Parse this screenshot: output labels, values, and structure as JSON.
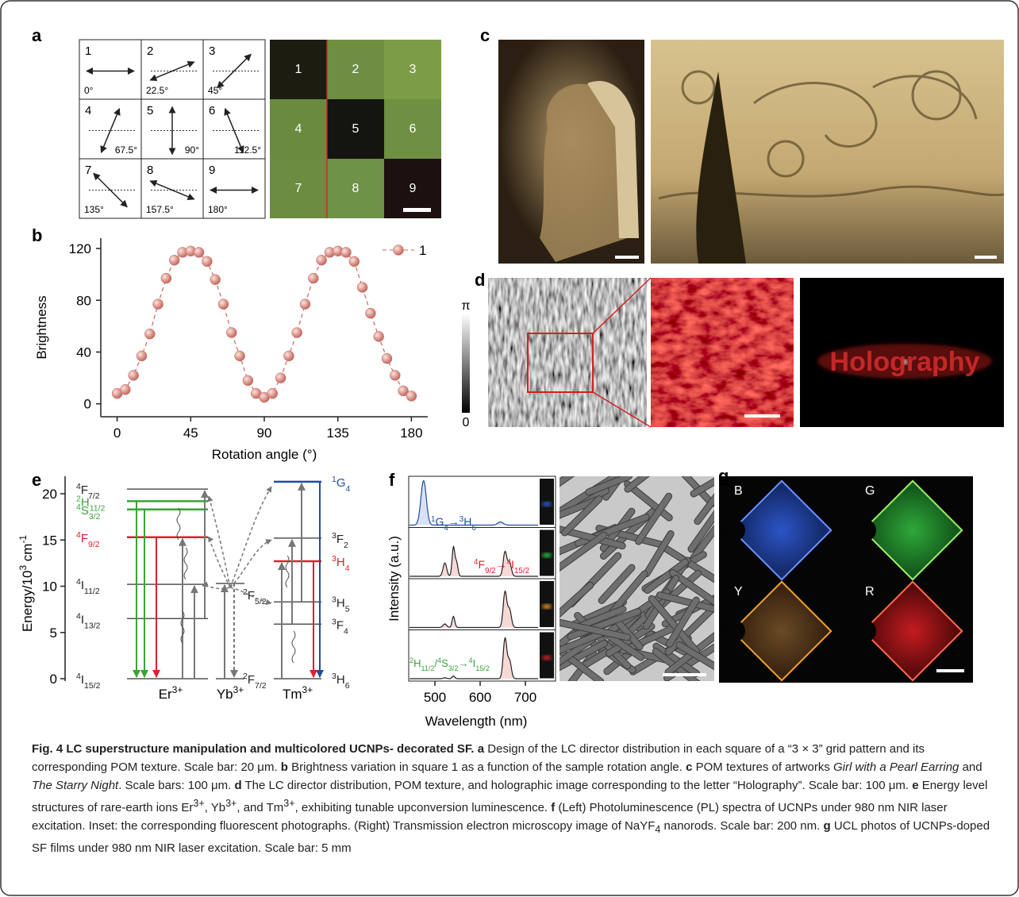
{
  "panel_labels": [
    "a",
    "b",
    "c",
    "d",
    "e",
    "f",
    "g"
  ],
  "panel_a": {
    "cells": [
      {
        "n": "1",
        "angle": "0°"
      },
      {
        "n": "2",
        "angle": "22.5°"
      },
      {
        "n": "3",
        "angle": "45°"
      },
      {
        "n": "4",
        "angle": "67.5°"
      },
      {
        "n": "5",
        "angle": "90°"
      },
      {
        "n": "6",
        "angle": "112.5°"
      },
      {
        "n": "7",
        "angle": "135°"
      },
      {
        "n": "8",
        "angle": "157.5°"
      },
      {
        "n": "9",
        "angle": "180°"
      }
    ],
    "pom_labels": [
      "1",
      "2",
      "3",
      "4",
      "5",
      "6",
      "7",
      "8",
      "9"
    ]
  },
  "chart_data": {
    "type": "line",
    "xlabel": "Rotation angle (°)",
    "ylabel": "Brightness",
    "x": [
      0,
      5,
      10,
      15,
      20,
      25,
      30,
      35,
      40,
      45,
      50,
      55,
      60,
      65,
      70,
      75,
      80,
      85,
      90,
      95,
      100,
      105,
      110,
      115,
      120,
      125,
      130,
      135,
      140,
      145,
      150,
      155,
      160,
      165,
      170,
      175,
      180
    ],
    "series": [
      {
        "name": "1",
        "color": "#c9675d",
        "values": [
          8,
          11,
          22,
          37,
          54,
          77,
          97,
          111,
          117,
          118,
          117,
          110,
          96,
          77,
          55,
          37,
          18,
          8,
          5,
          8,
          20,
          37,
          55,
          77,
          97,
          111,
          117,
          118,
          117,
          110,
          90,
          70,
          52,
          35,
          22,
          10,
          6
        ]
      }
    ],
    "xlim": [
      -10,
      190
    ],
    "ylim": [
      -10,
      128
    ],
    "xticks": [
      0,
      45,
      90,
      135,
      180
    ],
    "yticks": [
      0,
      40,
      80,
      120
    ],
    "legend": "upper right"
  },
  "panel_d": {
    "colorbar_top": "π",
    "colorbar_bottom": "0",
    "hologram_text": "Holography"
  },
  "panel_e": {
    "ylabel": [
      "Energy/10",
      {
        "sup": "3"
      },
      " cm",
      {
        "sup": "-1"
      }
    ],
    "yticks": [
      0,
      5,
      10,
      15,
      20
    ],
    "er_levels": [
      {
        "label": [
          {
            "sup": "4"
          },
          "F",
          {
            "sub": "7/2"
          }
        ]
      },
      {
        "label": [
          {
            "sup": "2"
          },
          "H",
          {
            "sub": "11/2"
          }
        ],
        "color": "#3aa335"
      },
      {
        "label": [
          {
            "sup": "4"
          },
          "S",
          {
            "sub": "3/2"
          }
        ],
        "color": "#3aa335"
      },
      {
        "label": [
          {
            "sup": "4"
          },
          "F",
          {
            "sub": "9/2"
          }
        ],
        "color": "#e0202a"
      },
      {
        "label": [
          {
            "sup": "4"
          },
          "I",
          {
            "sub": "11/2"
          }
        ]
      },
      {
        "label": [
          {
            "sup": "4"
          },
          "I",
          {
            "sub": "13/2"
          }
        ]
      },
      {
        "label": [
          {
            "sup": "4"
          },
          "I",
          {
            "sub": "15/2"
          }
        ]
      }
    ],
    "yb_levels": [
      {
        "label": [
          {
            "sup": "2"
          },
          "F",
          {
            "sub": "5/2"
          }
        ]
      },
      {
        "label": [
          {
            "sup": "2"
          },
          "F",
          {
            "sub": "7/2"
          }
        ]
      }
    ],
    "tm_levels": [
      {
        "label": [
          {
            "sup": "1"
          },
          "G",
          {
            "sub": "4"
          }
        ],
        "color": "#1e4fa0"
      },
      {
        "label": [
          {
            "sup": "3"
          },
          "F",
          {
            "sub": "2"
          }
        ]
      },
      {
        "label": [
          {
            "sup": "3"
          },
          "H",
          {
            "sub": "4"
          }
        ],
        "color": "#e0202a"
      },
      {
        "label": [
          {
            "sup": "3"
          },
          "H",
          {
            "sub": "5"
          }
        ]
      },
      {
        "label": [
          {
            "sup": "3"
          },
          "F",
          {
            "sub": "4"
          }
        ]
      },
      {
        "label": [
          {
            "sup": "3"
          },
          "H",
          {
            "sub": "6"
          }
        ]
      }
    ],
    "ions": [
      [
        "Er",
        {
          "sup": "3+"
        }
      ],
      [
        "Yb",
        {
          "sup": "3+"
        }
      ],
      [
        "Tm",
        {
          "sup": "3+"
        }
      ]
    ]
  },
  "panel_f": {
    "xlabel": "Wavelength (nm)",
    "ylabel": "Intensity (a.u.)",
    "xticks": [
      500,
      600,
      700
    ],
    "annotations": [
      [
        {
          "sup": "1"
        },
        "G",
        {
          "sub": "4"
        },
        "→",
        {
          "sup": "3"
        },
        "H",
        {
          "sub": "6"
        }
      ],
      [
        {
          "sup": "4"
        },
        "F",
        {
          "sub": "9/2"
        },
        "→",
        {
          "sup": "4"
        },
        "I",
        {
          "sub": "15/2"
        }
      ],
      [
        {
          "sup": "2"
        },
        "H",
        {
          "sub": "11/2"
        },
        "/",
        {
          "sup": "4"
        },
        "S",
        {
          "sub": "3/2"
        },
        "→",
        {
          "sup": "4"
        },
        "I",
        {
          "sub": "15/2"
        }
      ]
    ]
  },
  "panel_g": {
    "labels": [
      "B",
      "G",
      "Y",
      "R"
    ]
  },
  "caption": {
    "title": "Fig. 4 LC superstructure manipulation and multicolored UCNPs- decorated SF.",
    "panels": [
      {
        "label": "a",
        "text": "Design of the LC director distribution in each square of a “3 × 3” grid pattern and its corresponding POM texture. Scale bar: 20 μm."
      },
      {
        "label": "b",
        "text": "Brightness variation in square 1 as a function of the sample rotation angle."
      },
      {
        "label": "c",
        "text": [
          "POM textures of artworks ",
          {
            "i": "Girl with a Pearl Earring"
          },
          " and ",
          {
            "i": "The Starry Night"
          },
          ". Scale bars: 100 μm."
        ]
      },
      {
        "label": "d",
        "text": "The LC director distribution, POM texture, and holographic image corresponding to the letter “Holography”. Scale bar: 100 μm."
      },
      {
        "label": "e",
        "text": [
          "Energy level structures of rare-earth ions Er",
          {
            "sup": "3+"
          },
          ", Yb",
          {
            "sup": "3+"
          },
          ", and Tm",
          {
            "sup": "3+"
          },
          ", exhibiting tunable upconversion luminescence."
        ]
      },
      {
        "label": "f",
        "text": [
          "(Left) Photoluminescence (PL) spectra of UCNPs under 980 nm NIR laser excitation. Inset: the corresponding fluorescent photographs. (Right) Transmission electron microscopy image of NaYF",
          {
            "sub": "4"
          },
          " nanorods. Scale bar: 200 nm."
        ]
      },
      {
        "label": "g",
        "text": "UCL photos of UCNPs-doped SF films under 980 nm NIR laser excitation. Scale bar: 5 mm"
      }
    ]
  }
}
